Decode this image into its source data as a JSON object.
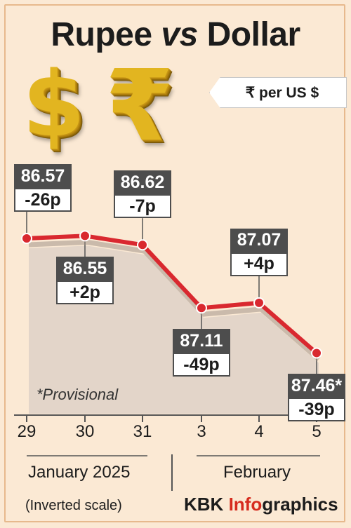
{
  "title_main": "Rupee",
  "title_vs": "vs",
  "title_end": "Dollar",
  "unit_label": "₹  per US $",
  "icons": [
    "dollar-3d-icon",
    "rupee-3d-icon"
  ],
  "icon_glyphs": {
    "dollar": "$",
    "rupee": "₹"
  },
  "note": "*Provisional",
  "x_months": [
    "January 2025",
    "February"
  ],
  "scale_note": "(Inverted scale)",
  "credit": {
    "part1": "KBK ",
    "part2": "Info",
    "part3": "graphics"
  },
  "colors": {
    "line": "#d9282f",
    "area": "#e0d3c8",
    "box_dark": "#4d4d4d",
    "background": "#fbe9d4"
  },
  "chart_data": {
    "type": "line",
    "categories": [
      "29",
      "30",
      "31",
      "3",
      "4",
      "5"
    ],
    "value_labels": [
      "86.57",
      "86.55",
      "86.62",
      "87.11",
      "87.07",
      "87.46*"
    ],
    "values": [
      86.57,
      86.55,
      86.62,
      87.11,
      87.07,
      87.46
    ],
    "changes": [
      "-26p",
      "+2p",
      "-7p",
      "-49p",
      "+4p",
      "-39p"
    ],
    "label_side": [
      "above",
      "below",
      "above",
      "below",
      "above",
      "below"
    ],
    "y_inverted": true,
    "ylim": [
      86.45,
      87.55
    ],
    "grid": false,
    "legend": "none"
  }
}
